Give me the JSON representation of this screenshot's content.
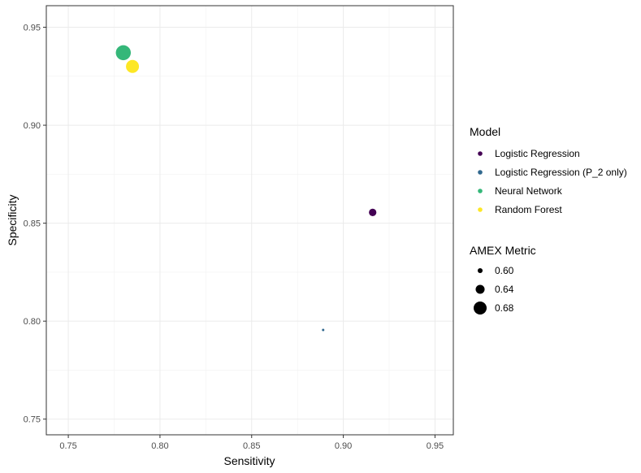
{
  "chart_data": {
    "type": "scatter",
    "title": "",
    "xlabel": "Sensitivity",
    "ylabel": "Specificity",
    "xlim": [
      0.738,
      0.96
    ],
    "ylim": [
      0.742,
      0.961
    ],
    "xticks": [
      0.75,
      0.8,
      0.85,
      0.9,
      0.95
    ],
    "yticks": [
      0.75,
      0.8,
      0.85,
      0.9,
      0.95
    ],
    "xtick_labels": [
      "0.75",
      "0.80",
      "0.85",
      "0.90",
      "0.95"
    ],
    "ytick_labels": [
      "0.75",
      "0.80",
      "0.85",
      "0.90",
      "0.95"
    ],
    "grid": true,
    "legend_position": "right",
    "color_legend": {
      "title": "Model",
      "entries": [
        {
          "label": "Logistic Regression",
          "color": "#440154"
        },
        {
          "label": "Logistic Regression (P_2 only)",
          "color": "#31688e"
        },
        {
          "label": "Neural Network",
          "color": "#35b779"
        },
        {
          "label": "Random Forest",
          "color": "#fde725"
        }
      ]
    },
    "size_legend": {
      "title": "AMEX Metric",
      "entries": [
        {
          "label": "0.60",
          "value": 0.6
        },
        {
          "label": "0.64",
          "value": 0.64
        },
        {
          "label": "0.68",
          "value": 0.68
        }
      ]
    },
    "points": [
      {
        "model": "Logistic Regression",
        "x": 0.916,
        "y": 0.8555,
        "amex": 0.625
      },
      {
        "model": "Logistic Regression (P_2 only)",
        "x": 0.889,
        "y": 0.7955,
        "amex": 0.575
      },
      {
        "model": "Neural Network",
        "x": 0.78,
        "y": 0.937,
        "amex": 0.7
      },
      {
        "model": "Random Forest",
        "x": 0.785,
        "y": 0.93,
        "amex": 0.68
      }
    ]
  }
}
